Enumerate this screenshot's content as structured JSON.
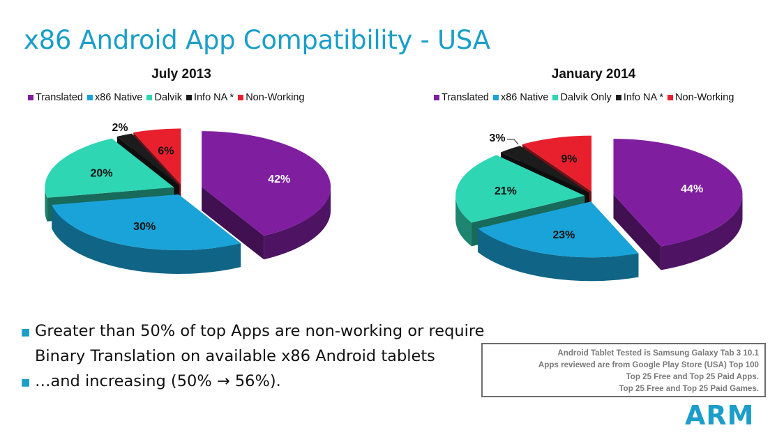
{
  "slide": {
    "title": "x86 Android App Compatibility - USA",
    "bullets": [
      "Greater than 50% of top Apps are non-working or require",
      "Binary Translation on available x86 Android tablets",
      "…and increasing (50% → 56%)."
    ],
    "note_lines": [
      "Android  Tablet Tested is Samsung Galaxy Tab 3 10.1",
      "Apps reviewed are from Google Play Store (USA) Top 100",
      "Top 25 Free and Top 25 Paid Apps.",
      "Top 25 Free and Top 25 Paid Games."
    ],
    "logo_text": "ARM"
  },
  "chart_data": [
    {
      "type": "pie",
      "title": "July 2013",
      "legend_placement": "top",
      "series": [
        {
          "name": "Translated",
          "value": 42,
          "label": "42%",
          "color": "#7f1fa0"
        },
        {
          "name": "x86 Native",
          "value": 30,
          "label": "30%",
          "color": "#1aa3d8"
        },
        {
          "name": "Dalvik",
          "value": 20,
          "label": "20%",
          "color": "#2fd6b4"
        },
        {
          "name": "Info NA *",
          "value": 2,
          "label": "2%",
          "color": "#1c1c1c"
        },
        {
          "name": "Non-Working",
          "value": 6,
          "label": "6%",
          "color": "#e8202e"
        }
      ]
    },
    {
      "type": "pie",
      "title": "January 2014",
      "legend_placement": "top",
      "series": [
        {
          "name": "Translated",
          "value": 44,
          "label": "44%",
          "color": "#7f1fa0"
        },
        {
          "name": "x86 Native",
          "value": 23,
          "label": "23%",
          "color": "#1aa3d8"
        },
        {
          "name": "Dalvik Only",
          "value": 21,
          "label": "21%",
          "color": "#2fd6b4"
        },
        {
          "name": "Info NA *",
          "value": 3,
          "label": "3%",
          "color": "#1c1c1c"
        },
        {
          "name": "Non-Working",
          "value": 9,
          "label": "9%",
          "color": "#e8202e"
        }
      ]
    }
  ]
}
